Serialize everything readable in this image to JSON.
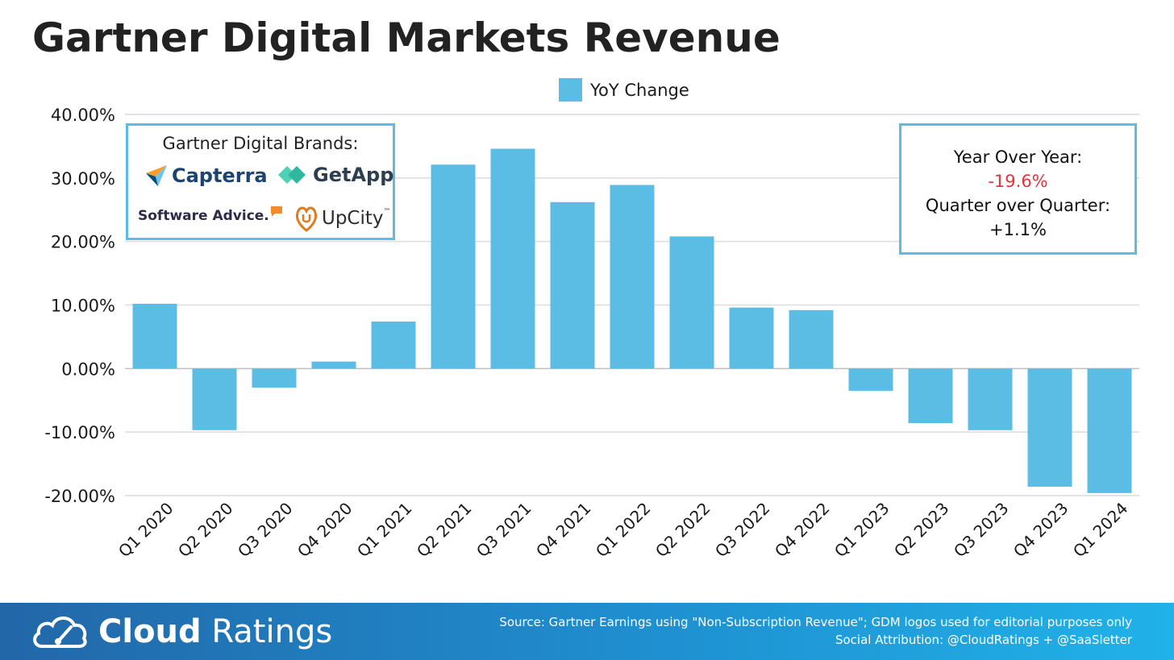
{
  "title": "Gartner Digital Markets Revenue",
  "chart_data": {
    "type": "bar",
    "title": "Gartner Digital Markets Revenue",
    "categories": [
      "Q1 2020",
      "Q2 2020",
      "Q3 2020",
      "Q4 2020",
      "Q1 2021",
      "Q2 2021",
      "Q3 2021",
      "Q4 2021",
      "Q1 2022",
      "Q2 2022",
      "Q3 2022",
      "Q4 2022",
      "Q1 2023",
      "Q2 2023",
      "Q3 2023",
      "Q4 2023",
      "Q1 2024"
    ],
    "series": [
      {
        "name": "YoY Change",
        "values": [
          10.2,
          -9.7,
          -3.0,
          1.1,
          7.4,
          32.1,
          34.6,
          26.2,
          28.9,
          20.8,
          9.6,
          9.2,
          -3.5,
          -8.6,
          -9.7,
          -18.6,
          -19.6
        ]
      }
    ],
    "yticks": [
      "40.00%",
      "30.00%",
      "20.00%",
      "10.00%",
      "0.00%",
      "-10.00%",
      "-20.00%"
    ],
    "ylim": [
      -20,
      40
    ],
    "xlabel": "",
    "ylabel": "",
    "grid": true,
    "legend": "top-center",
    "bar_color": "#5bbde4"
  },
  "brands": {
    "title": "Gartner Digital Brands:",
    "capterra": "Capterra",
    "getapp": "GetApp",
    "software_advice": "Software Advice.",
    "upcity": "UpCity",
    "upcity_tm": "™"
  },
  "stats": {
    "yoy_label": "Year Over Year:",
    "yoy_value": "-19.6%",
    "qoq_label": "Quarter over Quarter:",
    "qoq_value": "+1.1%"
  },
  "footer": {
    "brand_bold": "Cloud",
    "brand_light": " Ratings",
    "source": "Source: Gartner Earnings using \"Non-Subscription Revenue\"; GDM logos used for editorial purposes only",
    "attribution": "Social Attribution: @CloudRatings + @SaaSletter"
  },
  "colors": {
    "bar": "#5bbde4",
    "negative_stat": "#e8333d",
    "box_border": "#5bbde4"
  }
}
